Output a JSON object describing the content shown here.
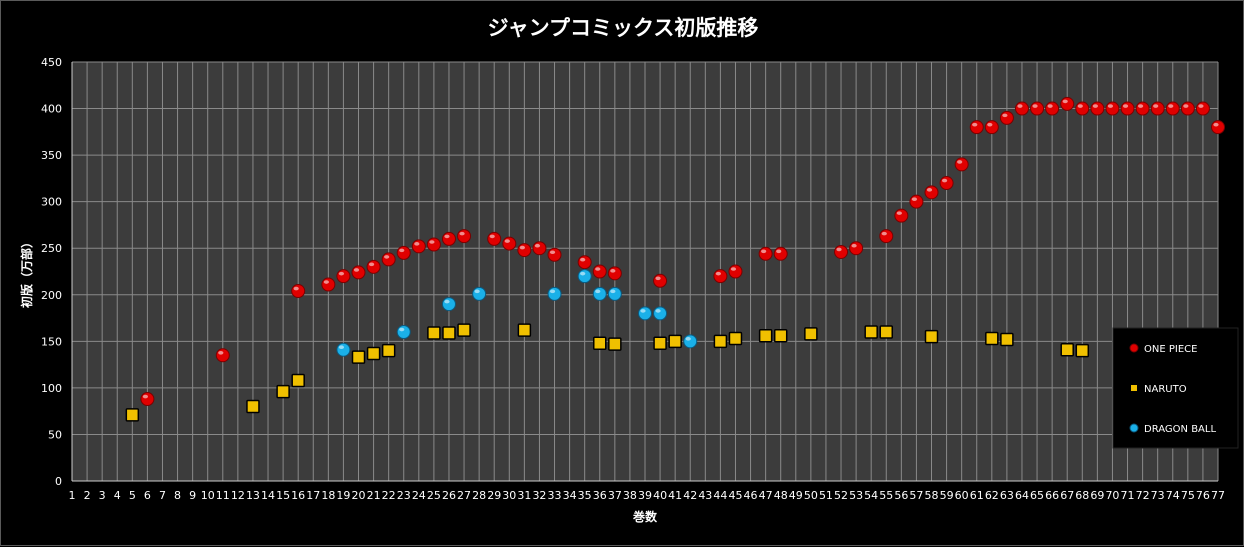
{
  "chart_data": {
    "type": "scatter",
    "title": "ジャンプコミックス初版推移",
    "xlabel": "巻数",
    "ylabel": "初版（万部）",
    "xlim": [
      1,
      77
    ],
    "ylim": [
      0,
      450
    ],
    "y_ticks": [
      "0",
      "50",
      "100",
      "150",
      "200",
      "250",
      "300",
      "350",
      "400",
      "450"
    ],
    "x_ticks": [
      "1",
      "2",
      "3",
      "4",
      "5",
      "6",
      "7",
      "8",
      "9",
      "10",
      "11",
      "12",
      "13",
      "14",
      "15",
      "16",
      "17",
      "18",
      "19",
      "20",
      "21",
      "22",
      "23",
      "24",
      "25",
      "26",
      "27",
      "28",
      "29",
      "30",
      "31",
      "32",
      "33",
      "34",
      "35",
      "36",
      "37",
      "38",
      "39",
      "40",
      "41",
      "42",
      "43",
      "44",
      "45",
      "46",
      "47",
      "48",
      "49",
      "50",
      "51",
      "52",
      "53",
      "54",
      "55",
      "56",
      "57",
      "58",
      "59",
      "60",
      "61",
      "62",
      "63",
      "64",
      "65",
      "66",
      "67",
      "68",
      "69",
      "70",
      "71",
      "72",
      "73",
      "74",
      "75",
      "76",
      "77"
    ],
    "grid": true,
    "legend_position": "right",
    "series": [
      {
        "name": "ONE PIECE",
        "marker": "circle",
        "color": "#e00000",
        "points": [
          [
            6,
            88
          ],
          [
            11,
            135
          ],
          [
            16,
            204
          ],
          [
            18,
            211
          ],
          [
            19,
            220
          ],
          [
            20,
            224
          ],
          [
            21,
            230
          ],
          [
            22,
            238
          ],
          [
            23,
            245
          ],
          [
            24,
            252
          ],
          [
            25,
            254
          ],
          [
            26,
            260
          ],
          [
            27,
            263
          ],
          [
            29,
            260
          ],
          [
            30,
            255
          ],
          [
            31,
            248
          ],
          [
            32,
            250
          ],
          [
            33,
            243
          ],
          [
            35,
            235
          ],
          [
            36,
            225
          ],
          [
            37,
            223
          ],
          [
            40,
            215
          ],
          [
            44,
            220
          ],
          [
            45,
            225
          ],
          [
            47,
            244
          ],
          [
            48,
            244
          ],
          [
            52,
            246
          ],
          [
            53,
            250
          ],
          [
            55,
            263
          ],
          [
            56,
            285
          ],
          [
            57,
            300
          ],
          [
            58,
            310
          ],
          [
            59,
            320
          ],
          [
            60,
            340
          ],
          [
            61,
            380
          ],
          [
            62,
            380
          ],
          [
            63,
            390
          ],
          [
            64,
            400
          ],
          [
            65,
            400
          ],
          [
            66,
            400
          ],
          [
            67,
            405
          ],
          [
            68,
            400
          ],
          [
            69,
            400
          ],
          [
            70,
            400
          ],
          [
            71,
            400
          ],
          [
            72,
            400
          ],
          [
            73,
            400
          ],
          [
            74,
            400
          ],
          [
            75,
            400
          ],
          [
            76,
            400
          ],
          [
            77,
            380
          ]
        ]
      },
      {
        "name": "NARUTO",
        "marker": "square",
        "color": "#f0c000",
        "points": [
          [
            5,
            71
          ],
          [
            13,
            80
          ],
          [
            15,
            96
          ],
          [
            16,
            108
          ],
          [
            20,
            133
          ],
          [
            21,
            137
          ],
          [
            22,
            140
          ],
          [
            25,
            159
          ],
          [
            26,
            159
          ],
          [
            27,
            162
          ],
          [
            31,
            162
          ],
          [
            36,
            148
          ],
          [
            37,
            147
          ],
          [
            40,
            148
          ],
          [
            41,
            150
          ],
          [
            44,
            150
          ],
          [
            45,
            153
          ],
          [
            47,
            156
          ],
          [
            48,
            156
          ],
          [
            50,
            158
          ],
          [
            54,
            160
          ],
          [
            55,
            160
          ],
          [
            58,
            155
          ],
          [
            62,
            153
          ],
          [
            63,
            152
          ],
          [
            67,
            141
          ],
          [
            68,
            140
          ]
        ]
      },
      {
        "name": "DRAGON BALL",
        "marker": "circle",
        "color": "#1ab0e8",
        "points": [
          [
            19,
            141
          ],
          [
            23,
            160
          ],
          [
            26,
            190
          ],
          [
            28,
            201
          ],
          [
            33,
            201
          ],
          [
            35,
            220
          ],
          [
            36,
            201
          ],
          [
            37,
            201
          ],
          [
            39,
            180
          ],
          [
            40,
            180
          ],
          [
            42,
            150
          ]
        ]
      }
    ]
  }
}
